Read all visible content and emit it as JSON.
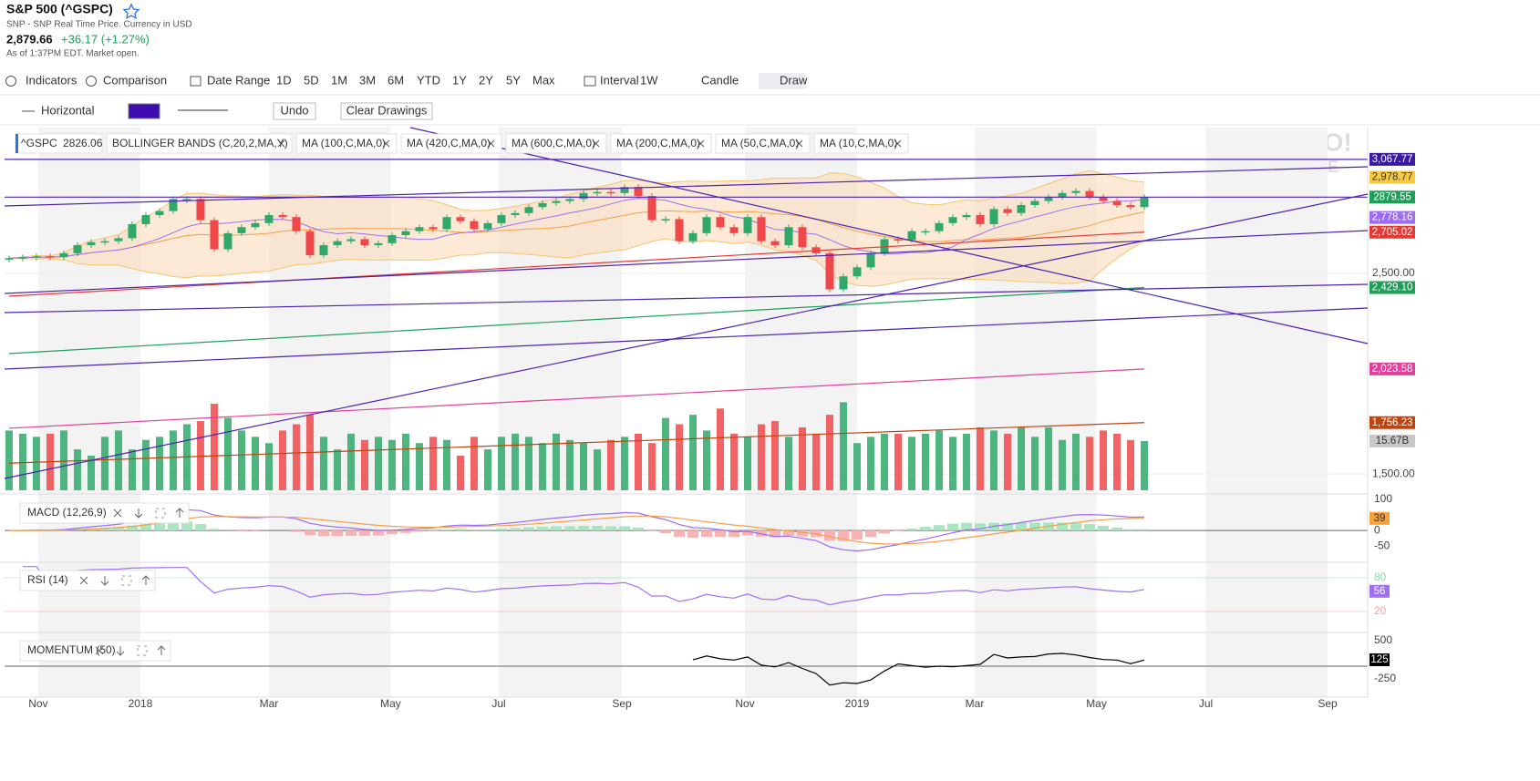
{
  "header": {
    "title": "S&P 500 (^GSPC)",
    "subtitle": "SNP - SNP Real Time Price. Currency in USD",
    "price": "2,879.66",
    "change": "+36.17 (+1.27%)",
    "as_of": "As of 1:37PM EDT. Market open."
  },
  "toolbar": {
    "items": [
      "Indicators",
      "Comparison",
      "Date Range",
      "1D",
      "5D",
      "1M",
      "3M",
      "6M",
      "YTD",
      "1Y",
      "2Y",
      "5Y",
      "Max",
      "Interval",
      "1W",
      "Candle",
      "Draw"
    ]
  },
  "draw_toolbar": {
    "tool": "Horizontal",
    "color": "#3d0db0",
    "buttons": [
      "Undo",
      "Clear Drawings"
    ]
  },
  "watermark": [
    "YAHOO!",
    "FINANCE"
  ],
  "chart_data": [
    {
      "type": "candlestick",
      "legend": [
        {
          "name": "^GSPC",
          "value": 2826.06
        },
        {
          "name": "BOLLINGER BANDS (C,20,2,MA,Y)"
        },
        {
          "name": "MA (100,C,MA,0)"
        },
        {
          "name": "MA (420,C,MA,0)"
        },
        {
          "name": "MA (600,C,MA,0)"
        },
        {
          "name": "MA (200,C,MA,0)"
        },
        {
          "name": "MA (50,C,MA,0)"
        },
        {
          "name": "MA (10,C,MA,0)"
        }
      ],
      "xlim": [
        -0.33,
        99.33
      ],
      "xticks": [
        {
          "value": 2.13,
          "label": "Nov"
        },
        {
          "value": 9.6,
          "label": "2018"
        },
        {
          "value": 19,
          "label": "Mar"
        },
        {
          "value": 27.9,
          "label": "May"
        },
        {
          "value": 35.8,
          "label": "Jul"
        },
        {
          "value": 44.8,
          "label": "Sep"
        },
        {
          "value": 53.8,
          "label": "Nov"
        },
        {
          "value": 62,
          "label": "2019"
        },
        {
          "value": 70.6,
          "label": "Mar"
        },
        {
          "value": 79.5,
          "label": "May"
        },
        {
          "value": 87.5,
          "label": "Jul"
        },
        {
          "value": 96.4,
          "label": "Sep"
        }
      ],
      "ylim": [
        1410,
        3226
      ],
      "yticks": [
        {
          "value": 1500,
          "label": "1,500.00"
        },
        {
          "value": 2500,
          "label": "2,500.00"
        }
      ],
      "up_color": "#2fa86a",
      "down_color": "#f0484a",
      "closes": [
        2575,
        2580,
        2585,
        2580,
        2600,
        2640,
        2655,
        2660,
        2675,
        2745,
        2790,
        2810,
        2870,
        2870,
        2765,
        2620,
        2700,
        2730,
        2750,
        2790,
        2780,
        2710,
        2590,
        2640,
        2660,
        2670,
        2640,
        2650,
        2690,
        2710,
        2730,
        2720,
        2780,
        2760,
        2720,
        2750,
        2790,
        2800,
        2830,
        2850,
        2860,
        2870,
        2900,
        2905,
        2900,
        2930,
        2885,
        2765,
        2770,
        2660,
        2700,
        2780,
        2730,
        2700,
        2780,
        2660,
        2640,
        2730,
        2630,
        2600,
        2420,
        2485,
        2530,
        2600,
        2670,
        2665,
        2710,
        2710,
        2750,
        2780,
        2790,
        2745,
        2820,
        2800,
        2840,
        2860,
        2880,
        2900,
        2910,
        2880,
        2860,
        2840,
        2830,
        2880
      ],
      "volume_ylim": [
        0,
        28.1
      ],
      "volumes": [
        19,
        18,
        17,
        18,
        19,
        13,
        11,
        17,
        19,
        13,
        16,
        17,
        19,
        21,
        22,
        27.5,
        23,
        19,
        17,
        15,
        19,
        21,
        24,
        17,
        13,
        18,
        16,
        17,
        16,
        18,
        15,
        17,
        16,
        11,
        17,
        13,
        17,
        18,
        17,
        15,
        18,
        16,
        15,
        13,
        16,
        17,
        18,
        15,
        23,
        21,
        24,
        19,
        26,
        18,
        17,
        21,
        22,
        17,
        20,
        18,
        24,
        28,
        15,
        17,
        18,
        18,
        17,
        18,
        19,
        17,
        18,
        20,
        19,
        18,
        20,
        17,
        20,
        16,
        18,
        17,
        19,
        18,
        16,
        15.67
      ],
      "price_tags": [
        {
          "value": 3067.77,
          "label": "3,067.77",
          "color": "#3a1a9e",
          "kind": "horizontal"
        },
        {
          "value": 2978.77,
          "label": "2,978.77",
          "color": "#f6c945"
        },
        {
          "value": 2879.55,
          "color": "#1e9e58",
          "kind": "horizontal"
        },
        {
          "value": 2778.16,
          "label": "2,778.16",
          "color": "#9c6cf5"
        },
        {
          "value": 2705.02,
          "label": "2,705.02",
          "color": "#e53935",
          "start": 2386
        },
        {
          "value": 2429.1,
          "label": "2,429.10",
          "color": "#1e9e58",
          "start": 2100
        },
        {
          "value": 2023.58,
          "label": "2,023.58",
          "color": "#e0409c",
          "start": 1728
        },
        {
          "value": 1756.23,
          "label": "1,756.23",
          "color": "#c1440e",
          "start": 1554
        },
        {
          "value": 15.67,
          "label": "15.67B",
          "color": "#c8c8c8",
          "axis": "volume"
        }
      ]
    },
    {
      "type": "macd",
      "name": "MACD (12,26,9)",
      "ylim": [
        -82,
        109
      ],
      "yticks": [
        100,
        0,
        -50
      ],
      "tag": {
        "value": 39,
        "color": "#f7a13c"
      }
    },
    {
      "type": "rsi",
      "name": "RSI (14)",
      "ylim": [
        -7.5,
        102.7
      ],
      "yticks": [
        80,
        20
      ],
      "tag": {
        "value": 56,
        "color": "#a070f0"
      }
    },
    {
      "type": "momentum",
      "name": "MOMENTUM (50)",
      "ylim": [
        -607,
        607
      ],
      "yticks": [
        500,
        -250
      ],
      "tag": {
        "value": 125,
        "color": "#000000"
      }
    }
  ]
}
